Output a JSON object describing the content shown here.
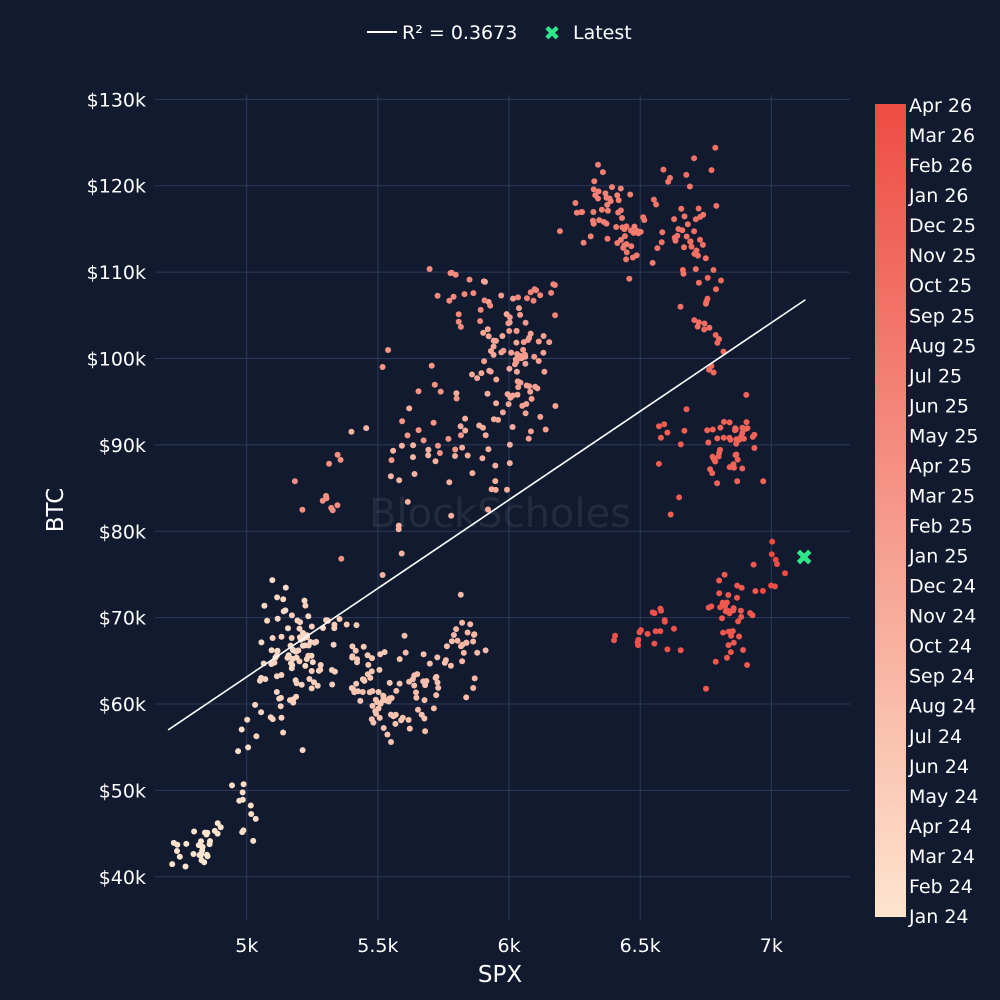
{
  "theme": {
    "background": "#111a2e",
    "grid": "#2b3a5c",
    "text": "#ffffff",
    "trendline": "#ffffff",
    "latest_marker": "#2ee88a",
    "colorscale_start": "#fde4cf",
    "colorscale_end": "#ee4c44"
  },
  "watermark": "BlockScholes",
  "chart_data": {
    "type": "scatter",
    "xlabel": "SPX",
    "ylabel": "BTC",
    "xlim": [
      4650,
      7300
    ],
    "ylim": [
      35000,
      130500
    ],
    "x_ticks": [
      5000,
      5500,
      6000,
      6500,
      7000
    ],
    "x_tick_labels": [
      "5k",
      "5.5k",
      "6k",
      "6.5k",
      "7k"
    ],
    "y_ticks": [
      40000,
      50000,
      60000,
      70000,
      80000,
      90000,
      100000,
      110000,
      120000,
      130000
    ],
    "y_tick_labels": [
      "$40k",
      "$50k",
      "$60k",
      "$70k",
      "$80k",
      "$90k",
      "$100k",
      "$110k",
      "$120k",
      "$130k"
    ],
    "grid": true,
    "legend": {
      "position": "top-center",
      "trend_label": "R² = 0.3673",
      "latest_label": "Latest"
    },
    "trendline": {
      "x": [
        4700,
        7130
      ],
      "y": [
        57000,
        106800
      ]
    },
    "latest": {
      "x": 7125,
      "y": 77000
    },
    "colorbar": {
      "position": "right",
      "labels": [
        "Apr 26",
        "Mar 26",
        "Feb 26",
        "Jan 26",
        "Dec 25",
        "Nov 25",
        "Oct 25",
        "Sep 25",
        "Aug 25",
        "Jul 25",
        "Jun 25",
        "May 25",
        "Apr 25",
        "Mar 25",
        "Feb 25",
        "Jan 25",
        "Dec 24",
        "Nov 24",
        "Oct 24",
        "Sep 24",
        "Aug 24",
        "Jul 24",
        "Jun 24",
        "May 24",
        "Apr 24",
        "Mar 24",
        "Feb 24",
        "Jan 24"
      ]
    },
    "clusters": [
      {
        "name": "jan-24",
        "t": 0.0,
        "cx": 4810,
        "cy": 43500,
        "sx": 55,
        "sy": 1800,
        "n": 30
      },
      {
        "name": "feb-24",
        "t": 0.04,
        "cx": 4990,
        "cy": 49500,
        "sx": 35,
        "sy": 3500,
        "n": 14
      },
      {
        "name": "mar-24",
        "t": 0.07,
        "cx": 5160,
        "cy": 67500,
        "sx": 70,
        "sy": 2500,
        "n": 45
      },
      {
        "name": "apr-24",
        "t": 0.11,
        "cx": 5100,
        "cy": 62500,
        "sx": 60,
        "sy": 3000,
        "n": 30
      },
      {
        "name": "may-24",
        "t": 0.14,
        "cx": 5290,
        "cy": 66000,
        "sx": 60,
        "sy": 3500,
        "n": 30
      },
      {
        "name": "jun-24",
        "t": 0.18,
        "cx": 5450,
        "cy": 64500,
        "sx": 50,
        "sy": 2500,
        "n": 30
      },
      {
        "name": "jul-24",
        "t": 0.22,
        "cx": 5540,
        "cy": 59000,
        "sx": 60,
        "sy": 2000,
        "n": 35
      },
      {
        "name": "aug-24",
        "t": 0.25,
        "cx": 5700,
        "cy": 63500,
        "sx": 50,
        "sy": 2500,
        "n": 30
      },
      {
        "name": "sep-24",
        "t": 0.29,
        "cx": 5830,
        "cy": 67500,
        "sx": 40,
        "sy": 2500,
        "n": 20
      },
      {
        "name": "oct-24",
        "t": 0.33,
        "cx": 5600,
        "cy": 86500,
        "sx": 110,
        "sy": 5000,
        "n": 20
      },
      {
        "name": "nov-24",
        "t": 0.36,
        "cx": 5900,
        "cy": 90000,
        "sx": 60,
        "sy": 4500,
        "n": 25
      },
      {
        "name": "dec-24",
        "t": 0.4,
        "cx": 5970,
        "cy": 101500,
        "sx": 55,
        "sy": 3500,
        "n": 35
      },
      {
        "name": "jan-25",
        "t": 0.44,
        "cx": 6050,
        "cy": 99000,
        "sx": 55,
        "sy": 4000,
        "n": 30
      },
      {
        "name": "feb-25",
        "t": 0.48,
        "cx": 6030,
        "cy": 104000,
        "sx": 50,
        "sy": 3000,
        "n": 20
      },
      {
        "name": "mar-25",
        "t": 0.52,
        "cx": 5700,
        "cy": 93500,
        "sx": 80,
        "sy": 3500,
        "n": 18
      },
      {
        "name": "apr-25",
        "t": 0.56,
        "cx": 5300,
        "cy": 83000,
        "sx": 60,
        "sy": 3500,
        "n": 12
      },
      {
        "name": "may-25",
        "t": 0.59,
        "cx": 5850,
        "cy": 107000,
        "sx": 90,
        "sy": 2000,
        "n": 18
      },
      {
        "name": "jun-25",
        "t": 0.63,
        "cx": 6150,
        "cy": 107000,
        "sx": 60,
        "sy": 1500,
        "n": 10
      },
      {
        "name": "jul-25",
        "t": 0.66,
        "cx": 6350,
        "cy": 117500,
        "sx": 60,
        "sy": 1800,
        "n": 35
      },
      {
        "name": "aug-25",
        "t": 0.7,
        "cx": 6450,
        "cy": 113500,
        "sx": 50,
        "sy": 2000,
        "n": 25
      },
      {
        "name": "sep-25",
        "t": 0.74,
        "cx": 6640,
        "cy": 115500,
        "sx": 50,
        "sy": 2500,
        "n": 25
      },
      {
        "name": "oct-25",
        "t": 0.77,
        "cx": 6730,
        "cy": 112000,
        "sx": 50,
        "sy": 5000,
        "n": 28
      },
      {
        "name": "nov-25",
        "t": 0.81,
        "cx": 6770,
        "cy": 102000,
        "sx": 40,
        "sy": 4000,
        "n": 12
      },
      {
        "name": "dec-25",
        "t": 0.85,
        "cx": 6860,
        "cy": 90000,
        "sx": 55,
        "sy": 2500,
        "n": 45
      },
      {
        "name": "jan-26",
        "t": 0.89,
        "cx": 6620,
        "cy": 88500,
        "sx": 40,
        "sy": 3000,
        "n": 10
      },
      {
        "name": "feb-26",
        "t": 0.92,
        "cx": 6850,
        "cy": 69500,
        "sx": 60,
        "sy": 3500,
        "n": 40
      },
      {
        "name": "mar-26",
        "t": 0.96,
        "cx": 6560,
        "cy": 68500,
        "sx": 60,
        "sy": 1500,
        "n": 20
      },
      {
        "name": "apr-26",
        "t": 1.0,
        "cx": 7020,
        "cy": 75500,
        "sx": 40,
        "sy": 1500,
        "n": 8
      }
    ]
  }
}
